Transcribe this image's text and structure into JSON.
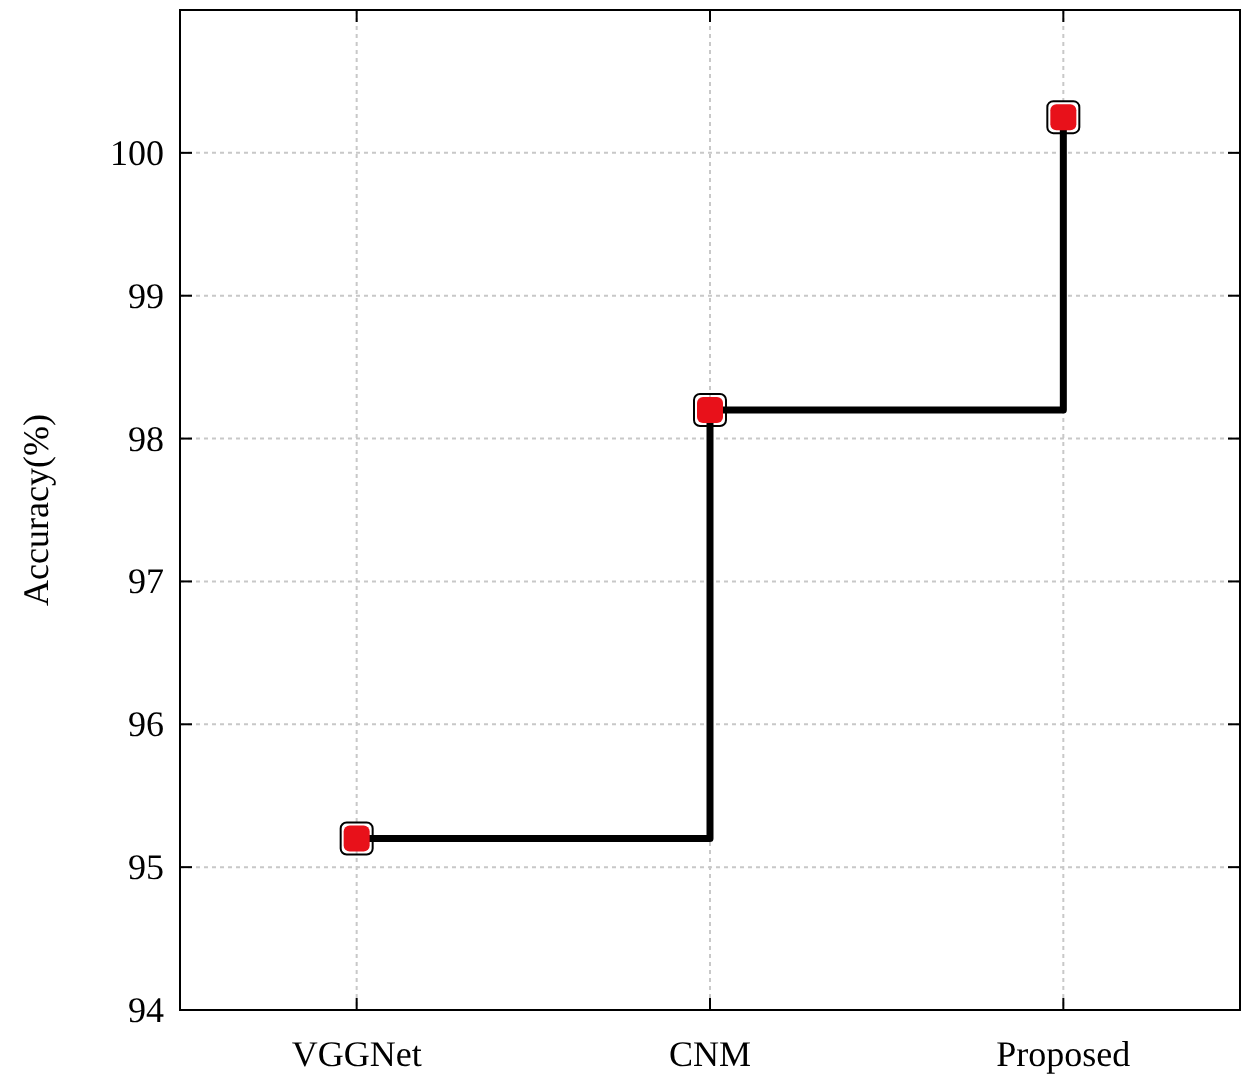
{
  "chart_data": {
    "type": "step",
    "categories": [
      "VGGNet",
      "CNM",
      "Proposed"
    ],
    "series": [
      {
        "color": "#000000",
        "values": [
          95.2,
          98.2,
          100.25
        ]
      },
      {
        "type": "scatter",
        "color": "#e8111a",
        "values": [
          95.2,
          98.2,
          100.25
        ]
      }
    ],
    "ylabel": "Accuracy(%)",
    "ylim": [
      94,
      101
    ],
    "yticks": [
      94,
      95,
      96,
      97,
      98,
      99,
      100
    ],
    "grid": true,
    "marker": "square"
  }
}
